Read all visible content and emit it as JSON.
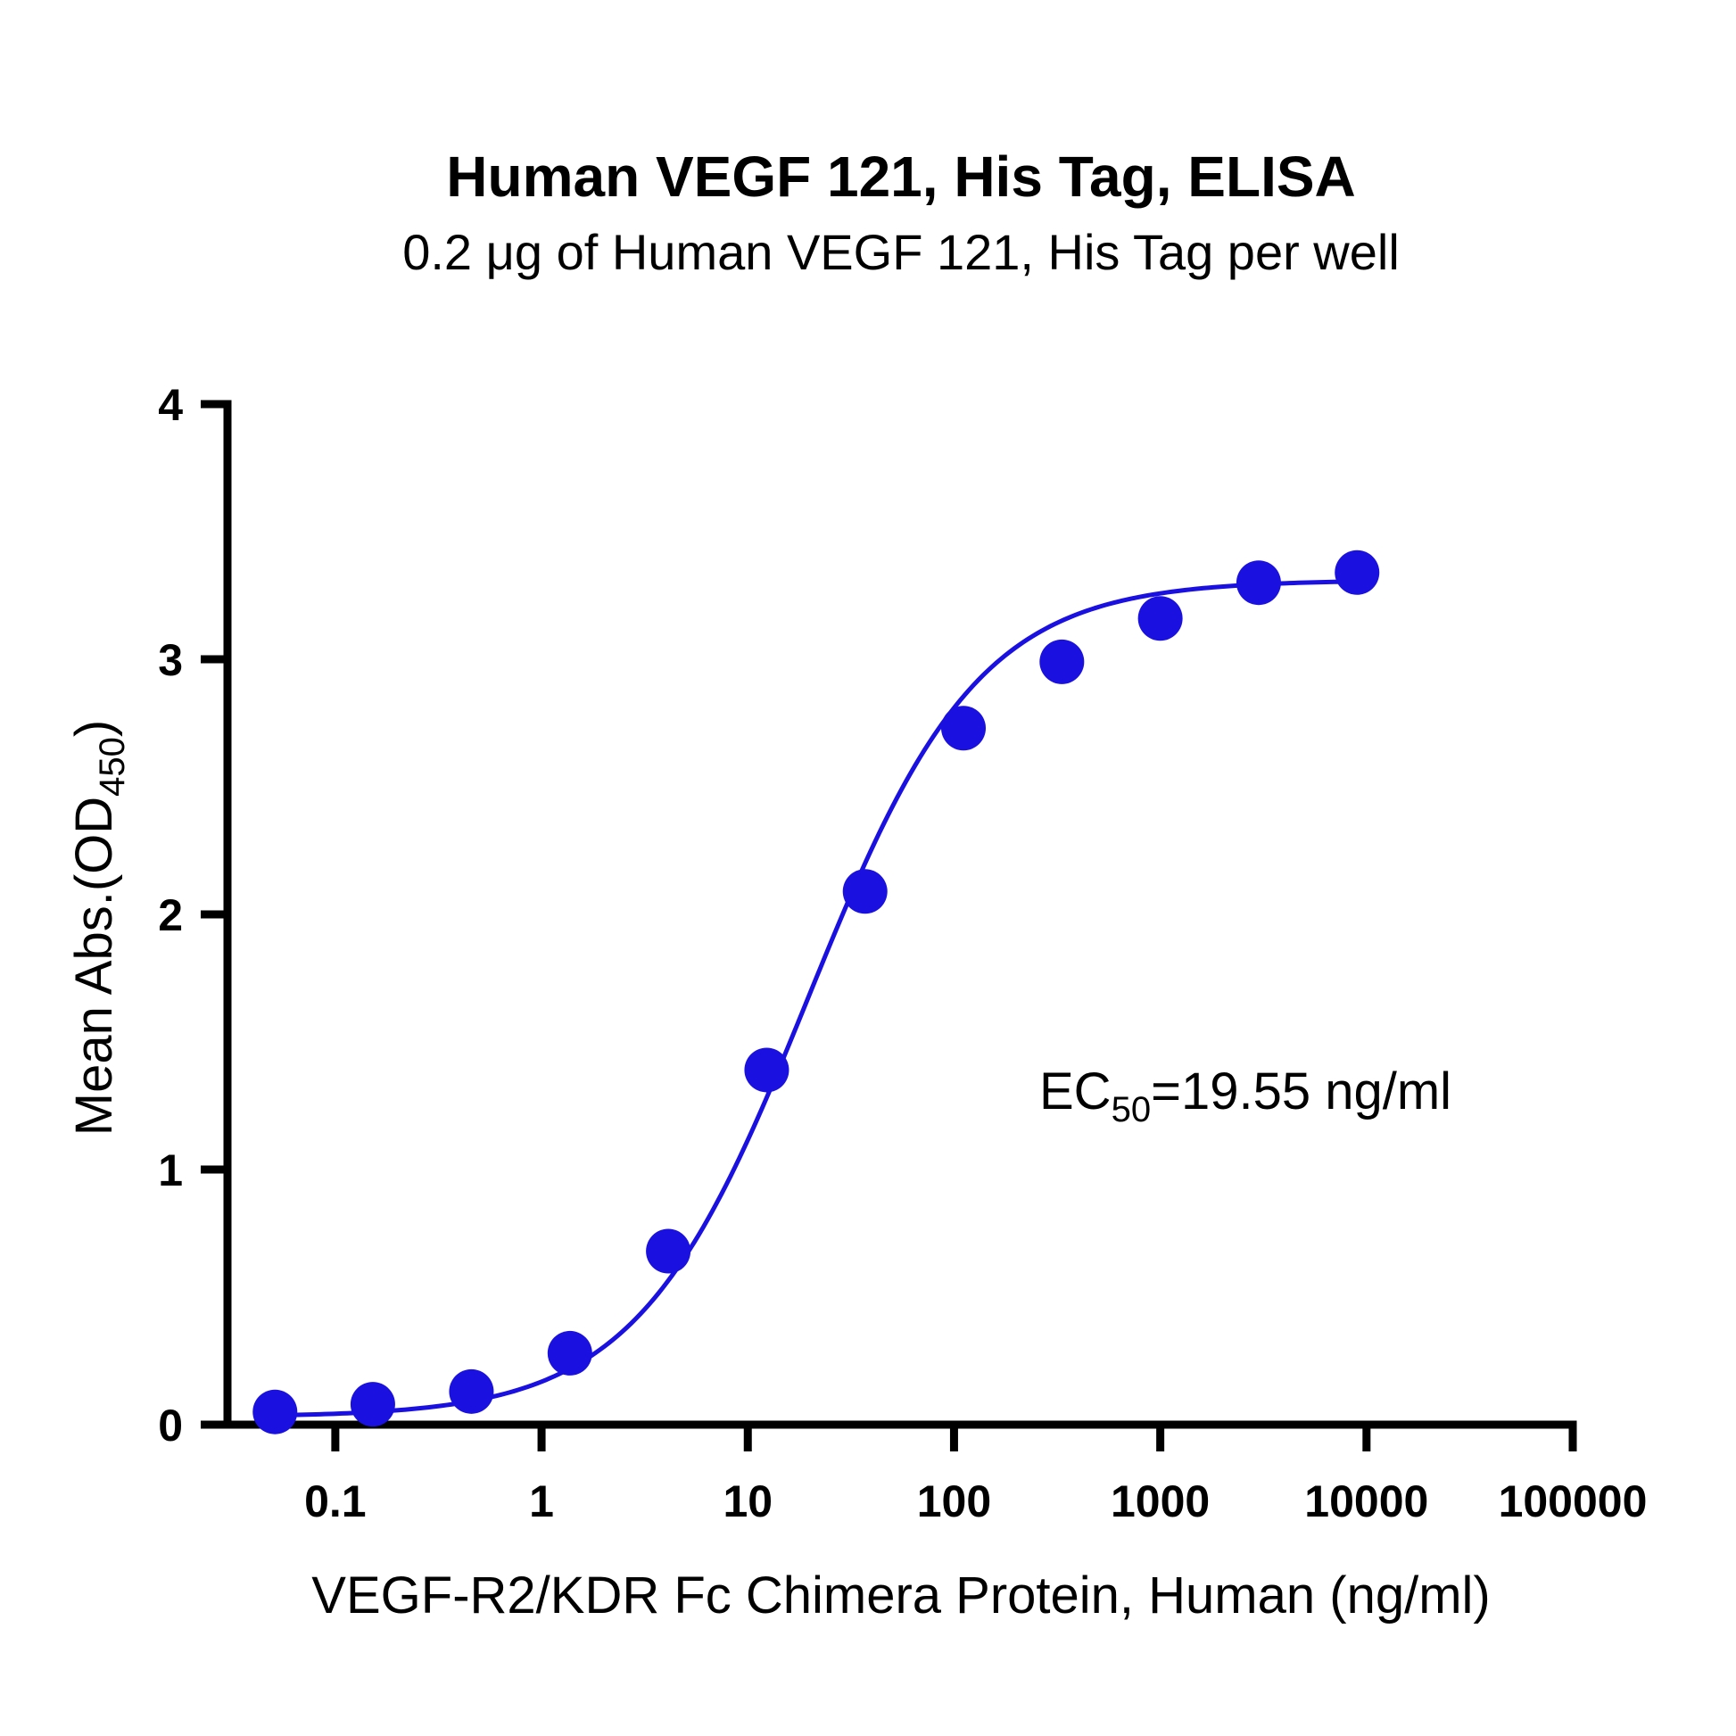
{
  "chart_data": {
    "type": "scatter",
    "title": "Human VEGF 121, His Tag, ELISA",
    "subtitle": "0.2 μg of Human VEGF 121, His Tag per well",
    "xlabel": "VEGF-R2/KDR Fc Chimera Protein, Human (ng/ml)",
    "ylabel": {
      "main": "Mean Abs.(OD",
      "sub": "450",
      "end": ")"
    },
    "x_scale": "log",
    "xlim": [
      0.03,
      100000
    ],
    "ylim": [
      0,
      4
    ],
    "x_ticks": [
      {
        "value": 0.1,
        "label": "0.1"
      },
      {
        "value": 1,
        "label": "1"
      },
      {
        "value": 10,
        "label": "10"
      },
      {
        "value": 100,
        "label": "100"
      },
      {
        "value": 1000,
        "label": "1000"
      },
      {
        "value": 10000,
        "label": "10000"
      },
      {
        "value": 100000,
        "label": "100000"
      }
    ],
    "y_ticks": [
      {
        "value": 0,
        "label": "0"
      },
      {
        "value": 1,
        "label": "1"
      },
      {
        "value": 2,
        "label": "2"
      },
      {
        "value": 3,
        "label": "3"
      },
      {
        "value": 4,
        "label": "4"
      }
    ],
    "series": [
      {
        "color": "#1a10e0",
        "x": [
          0.051,
          0.152,
          0.457,
          1.372,
          4.115,
          12.35,
          37.04,
          111.1,
          333.3,
          1000,
          3000,
          9000
        ],
        "y": [
          0.05,
          0.08,
          0.13,
          0.28,
          0.68,
          1.39,
          2.09,
          2.73,
          2.99,
          3.16,
          3.3,
          3.34
        ]
      }
    ],
    "fit": {
      "model": "4PL",
      "bottom": 0.03,
      "top": 3.31,
      "ec50": 19.55,
      "hill": 1.05
    },
    "annotation": {
      "prefix": "EC",
      "sub": "50",
      "suffix": "=19.55 ng/ml"
    },
    "grid": false,
    "legend": "none"
  }
}
